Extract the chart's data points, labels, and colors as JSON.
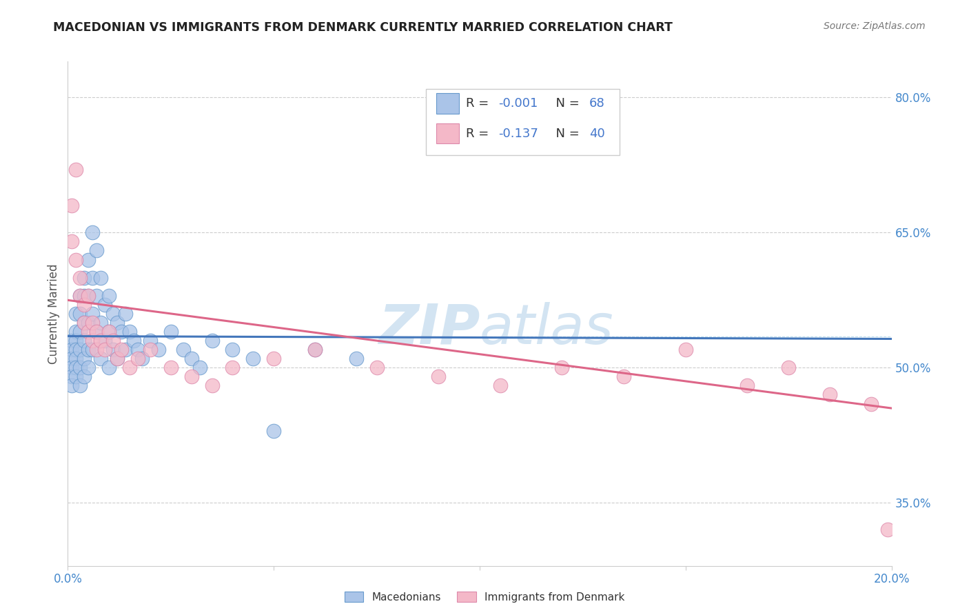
{
  "title": "MACEDONIAN VS IMMIGRANTS FROM DENMARK CURRENTLY MARRIED CORRELATION CHART",
  "source": "Source: ZipAtlas.com",
  "ylabel": "Currently Married",
  "x_min": 0.0,
  "x_max": 0.2,
  "y_min": 0.28,
  "y_max": 0.84,
  "yticks_right": [
    0.35,
    0.5,
    0.65,
    0.8
  ],
  "ytick_labels_right": [
    "35.0%",
    "50.0%",
    "65.0%",
    "80.0%"
  ],
  "legend_r1": "-0.001",
  "legend_n1": "68",
  "legend_r2": "-0.137",
  "legend_n2": "40",
  "blue_color": "#aac4e8",
  "blue_edge": "#6699cc",
  "pink_color": "#f4b8c8",
  "pink_edge": "#dd88aa",
  "trend_blue": "#4477bb",
  "trend_pink": "#dd6688",
  "dashed_line_color": "#bbddee",
  "watermark_color": "#cce0f0",
  "background_color": "#ffffff",
  "grid_color": "#cccccc",
  "blue_points_x": [
    0.001,
    0.001,
    0.001,
    0.001,
    0.001,
    0.001,
    0.002,
    0.002,
    0.002,
    0.002,
    0.002,
    0.002,
    0.002,
    0.003,
    0.003,
    0.003,
    0.003,
    0.003,
    0.003,
    0.004,
    0.004,
    0.004,
    0.004,
    0.004,
    0.004,
    0.005,
    0.005,
    0.005,
    0.005,
    0.005,
    0.006,
    0.006,
    0.006,
    0.006,
    0.007,
    0.007,
    0.007,
    0.008,
    0.008,
    0.008,
    0.009,
    0.009,
    0.01,
    0.01,
    0.01,
    0.011,
    0.011,
    0.012,
    0.012,
    0.013,
    0.014,
    0.014,
    0.015,
    0.016,
    0.017,
    0.018,
    0.02,
    0.022,
    0.025,
    0.028,
    0.03,
    0.032,
    0.035,
    0.04,
    0.045,
    0.05,
    0.06,
    0.07
  ],
  "blue_points_y": [
    0.53,
    0.52,
    0.51,
    0.5,
    0.49,
    0.48,
    0.56,
    0.54,
    0.53,
    0.52,
    0.51,
    0.5,
    0.49,
    0.58,
    0.56,
    0.54,
    0.52,
    0.5,
    0.48,
    0.6,
    0.58,
    0.55,
    0.53,
    0.51,
    0.49,
    0.62,
    0.58,
    0.55,
    0.52,
    0.5,
    0.65,
    0.6,
    0.56,
    0.52,
    0.63,
    0.58,
    0.54,
    0.6,
    0.55,
    0.51,
    0.57,
    0.53,
    0.58,
    0.54,
    0.5,
    0.56,
    0.52,
    0.55,
    0.51,
    0.54,
    0.56,
    0.52,
    0.54,
    0.53,
    0.52,
    0.51,
    0.53,
    0.52,
    0.54,
    0.52,
    0.51,
    0.5,
    0.53,
    0.52,
    0.51,
    0.43,
    0.52,
    0.51
  ],
  "pink_points_x": [
    0.001,
    0.001,
    0.002,
    0.002,
    0.003,
    0.003,
    0.004,
    0.004,
    0.005,
    0.005,
    0.006,
    0.006,
    0.007,
    0.007,
    0.008,
    0.009,
    0.01,
    0.011,
    0.012,
    0.013,
    0.015,
    0.017,
    0.02,
    0.025,
    0.03,
    0.035,
    0.04,
    0.05,
    0.06,
    0.075,
    0.09,
    0.105,
    0.12,
    0.135,
    0.15,
    0.165,
    0.175,
    0.185,
    0.195,
    0.199
  ],
  "pink_points_y": [
    0.68,
    0.64,
    0.72,
    0.62,
    0.6,
    0.58,
    0.57,
    0.55,
    0.58,
    0.54,
    0.55,
    0.53,
    0.54,
    0.52,
    0.53,
    0.52,
    0.54,
    0.53,
    0.51,
    0.52,
    0.5,
    0.51,
    0.52,
    0.5,
    0.49,
    0.48,
    0.5,
    0.51,
    0.52,
    0.5,
    0.49,
    0.48,
    0.5,
    0.49,
    0.52,
    0.48,
    0.5,
    0.47,
    0.46,
    0.32
  ],
  "blue_trend_y0": 0.535,
  "blue_trend_y1": 0.532,
  "pink_trend_y0": 0.575,
  "pink_trend_y1": 0.455
}
